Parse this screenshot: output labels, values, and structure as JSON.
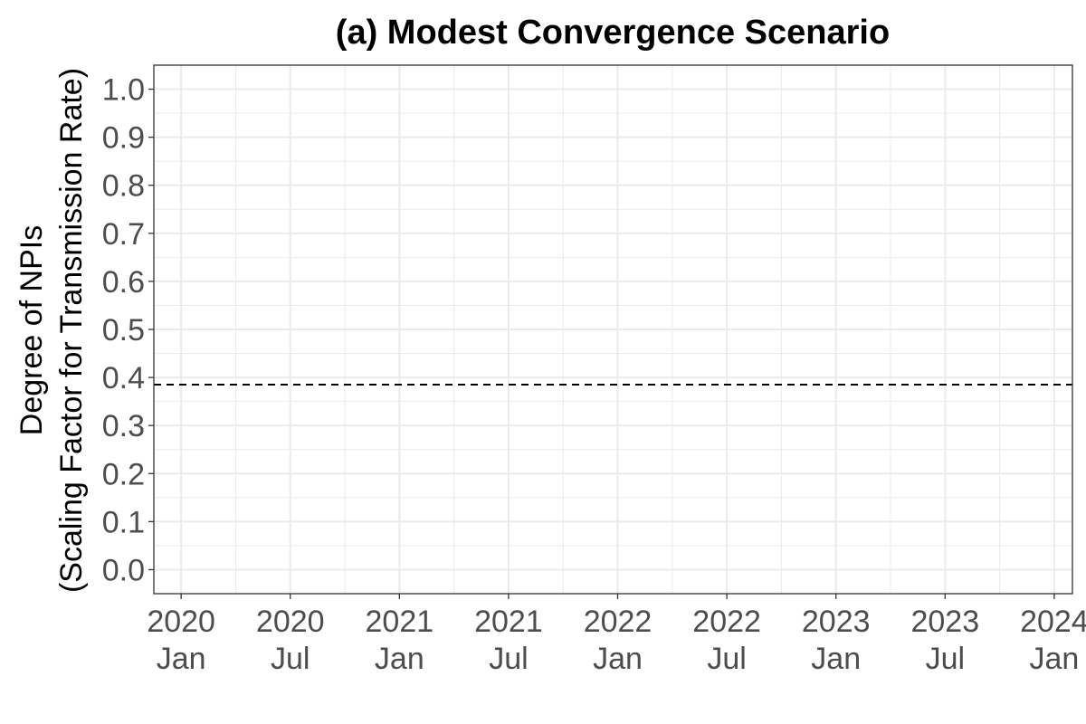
{
  "chart_data": {
    "type": "line",
    "title": "(a) Modest Convergence Scenario",
    "xlabel": "",
    "ylabel_lines": [
      "Degree of NPIs",
      "(Scaling Factor for Transmission Rate)"
    ],
    "ylim": [
      -0.05,
      1.05
    ],
    "yticks": [
      "0.0",
      "0.1",
      "0.2",
      "0.3",
      "0.4",
      "0.5",
      "0.6",
      "0.7",
      "0.8",
      "0.9",
      "1.0"
    ],
    "xticks": [
      {
        "year": "2020",
        "month": "Jan"
      },
      {
        "year": "2020",
        "month": "Jul"
      },
      {
        "year": "2021",
        "month": "Jan"
      },
      {
        "year": "2021",
        "month": "Jul"
      },
      {
        "year": "2022",
        "month": "Jan"
      },
      {
        "year": "2022",
        "month": "Jul"
      },
      {
        "year": "2023",
        "month": "Jan"
      },
      {
        "year": "2023",
        "month": "Jul"
      },
      {
        "year": "2024",
        "month": "Jan"
      }
    ],
    "xlim": [
      "2019-11",
      "2024-02"
    ],
    "reference_line": {
      "y": 0.385,
      "style": "dashed",
      "color": "#000000"
    },
    "series": [],
    "grid": true,
    "legend": "none",
    "colors": {
      "grid": "#ebebeb",
      "axis_text": "#4d4d4d",
      "text": "#000000"
    }
  }
}
